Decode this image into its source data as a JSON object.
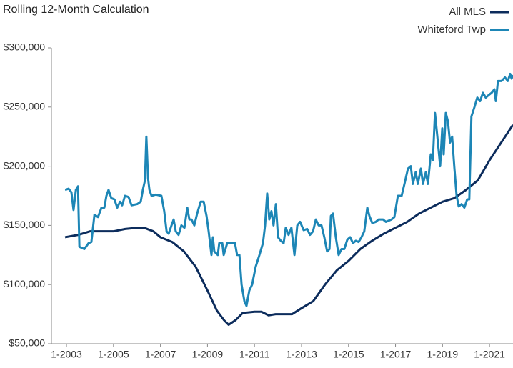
{
  "chart_data": {
    "type": "line",
    "title": "Rolling 12-Month Calculation",
    "xlim": [
      2002.36,
      2022.0
    ],
    "xticks": [
      {
        "value": 2003,
        "label": "1-2003"
      },
      {
        "value": 2005,
        "label": "1-2005"
      },
      {
        "value": 2007,
        "label": "1-2007"
      },
      {
        "value": 2009,
        "label": "1-2009"
      },
      {
        "value": 2011,
        "label": "1-2011"
      },
      {
        "value": 2013,
        "label": "1-2013"
      },
      {
        "value": 2015,
        "label": "1-2015"
      },
      {
        "value": 2017,
        "label": "1-2017"
      },
      {
        "value": 2019,
        "label": "1-2019"
      },
      {
        "value": 2021,
        "label": "1-2021"
      }
    ],
    "ylim": [
      50000,
      300000
    ],
    "yticks": [
      {
        "value": 50000,
        "label": "$50,000"
      },
      {
        "value": 100000,
        "label": "$100,000"
      },
      {
        "value": 150000,
        "label": "$150,000"
      },
      {
        "value": 200000,
        "label": "$200,000"
      },
      {
        "value": 250000,
        "label": "$250,000"
      },
      {
        "value": 300000,
        "label": "$300,000"
      }
    ],
    "legend": "top-right",
    "series": [
      {
        "name": "All MLS",
        "color": "#0c2c5c",
        "x": [
          2002.94,
          2003.5,
          2004.0,
          2005.0,
          2005.5,
          2006.0,
          2006.3,
          2006.7,
          2007.0,
          2007.5,
          2008.0,
          2008.5,
          2009.0,
          2009.4,
          2009.7,
          2009.9,
          2010.2,
          2010.5,
          2011.0,
          2011.3,
          2011.6,
          2011.9,
          2012.6,
          2013.0,
          2013.5,
          2014.0,
          2014.5,
          2015.0,
          2015.5,
          2016.0,
          2016.5,
          2017.0,
          2017.5,
          2018.0,
          2018.5,
          2019.0,
          2019.5,
          2020.0,
          2020.5,
          2021.0,
          2021.5,
          2022.0
        ],
        "values": [
          140000,
          142000,
          145000,
          145000,
          147000,
          148000,
          148000,
          145000,
          140000,
          136000,
          128000,
          115000,
          95000,
          78000,
          70000,
          66000,
          70000,
          76000,
          77000,
          77000,
          74000,
          75000,
          75000,
          80000,
          86000,
          100000,
          112000,
          120000,
          130000,
          137000,
          143000,
          148000,
          153000,
          160000,
          165000,
          170000,
          173000,
          180000,
          188000,
          205000,
          220000,
          235000
        ]
      },
      {
        "name": "Whiteford Twp",
        "color": "#1d86b6",
        "x": [
          2002.94,
          2003.09,
          2003.21,
          2003.3,
          2003.4,
          2003.49,
          2003.55,
          2003.76,
          2003.94,
          2004.06,
          2004.19,
          2004.34,
          2004.49,
          2004.61,
          2004.7,
          2004.79,
          2004.91,
          2005.04,
          2005.16,
          2005.28,
          2005.37,
          2005.49,
          2005.64,
          2005.77,
          2006.01,
          2006.16,
          2006.25,
          2006.34,
          2006.4,
          2006.47,
          2006.53,
          2006.62,
          2006.8,
          2007.04,
          2007.16,
          2007.26,
          2007.35,
          2007.47,
          2007.56,
          2007.65,
          2007.77,
          2007.89,
          2008.02,
          2008.14,
          2008.23,
          2008.32,
          2008.44,
          2008.56,
          2008.71,
          2008.84,
          2008.96,
          2009.05,
          2009.17,
          2009.23,
          2009.29,
          2009.44,
          2009.5,
          2009.63,
          2009.69,
          2009.84,
          2010.05,
          2010.17,
          2010.26,
          2010.36,
          2010.45,
          2010.57,
          2010.66,
          2010.78,
          2010.9,
          2011.05,
          2011.21,
          2011.36,
          2011.45,
          2011.54,
          2011.63,
          2011.72,
          2011.81,
          2011.91,
          2012.0,
          2012.12,
          2012.24,
          2012.33,
          2012.45,
          2012.57,
          2012.7,
          2012.82,
          2012.94,
          2013.09,
          2013.24,
          2013.36,
          2013.49,
          2013.61,
          2013.73,
          2013.85,
          2013.97,
          2014.09,
          2014.19,
          2014.25,
          2014.34,
          2014.46,
          2014.58,
          2014.7,
          2014.82,
          2014.95,
          2015.07,
          2015.19,
          2015.31,
          2015.43,
          2015.55,
          2015.67,
          2015.8,
          2015.89,
          2016.01,
          2016.16,
          2016.28,
          2016.47,
          2016.59,
          2016.83,
          2016.95,
          2017.1,
          2017.26,
          2017.38,
          2017.53,
          2017.65,
          2017.74,
          2017.86,
          2017.95,
          2018.08,
          2018.17,
          2018.29,
          2018.38,
          2018.5,
          2018.59,
          2018.68,
          2018.78,
          2018.9,
          2018.99,
          2019.05,
          2019.14,
          2019.23,
          2019.32,
          2019.41,
          2019.5,
          2019.6,
          2019.69,
          2019.81,
          2019.93,
          2020.05,
          2020.14,
          2020.23,
          2020.36,
          2020.48,
          2020.6,
          2020.72,
          2020.84,
          2020.96,
          2021.09,
          2021.21,
          2021.27,
          2021.36,
          2021.51,
          2021.66,
          2021.78,
          2021.88,
          2021.94,
          2022.0
        ],
        "values": [
          180000,
          181000,
          178000,
          163000,
          180000,
          183000,
          132000,
          130000,
          135000,
          136000,
          159000,
          157000,
          165000,
          165000,
          175000,
          180000,
          173000,
          172000,
          165000,
          170000,
          167000,
          175000,
          174000,
          167000,
          168000,
          170000,
          180000,
          188000,
          225000,
          190000,
          180000,
          175000,
          176000,
          175000,
          162000,
          145000,
          143000,
          150000,
          155000,
          145000,
          142000,
          150000,
          148000,
          165000,
          155000,
          155000,
          150000,
          160000,
          170000,
          170000,
          158000,
          145000,
          125000,
          140000,
          128000,
          125000,
          135000,
          135000,
          125000,
          135000,
          135000,
          135000,
          125000,
          125000,
          100000,
          86000,
          82000,
          95000,
          100000,
          115000,
          125000,
          135000,
          150000,
          177000,
          155000,
          162000,
          150000,
          168000,
          140000,
          137000,
          135000,
          148000,
          142000,
          148000,
          125000,
          150000,
          153000,
          146000,
          147000,
          142000,
          145000,
          155000,
          150000,
          150000,
          140000,
          128000,
          130000,
          158000,
          160000,
          140000,
          125000,
          130000,
          130000,
          138000,
          140000,
          135000,
          137000,
          136000,
          140000,
          145000,
          165000,
          158000,
          152000,
          153000,
          155000,
          155000,
          153000,
          155000,
          157000,
          175000,
          175000,
          185000,
          198000,
          200000,
          185000,
          195000,
          185000,
          198000,
          185000,
          195000,
          185000,
          210000,
          205000,
          245000,
          225000,
          200000,
          232000,
          210000,
          245000,
          238000,
          220000,
          225000,
          200000,
          175000,
          166000,
          168000,
          165000,
          172000,
          172000,
          242000,
          250000,
          258000,
          255000,
          262000,
          258000,
          260000,
          262000,
          265000,
          255000,
          272000,
          272000,
          275000,
          272000,
          278000,
          274000,
          277000
        ]
      }
    ]
  }
}
